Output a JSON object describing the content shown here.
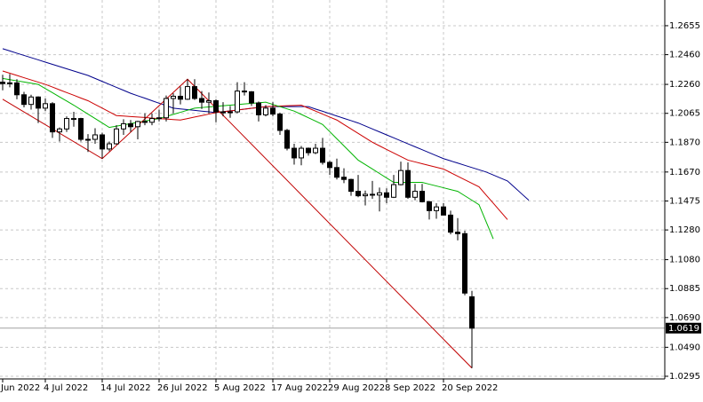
{
  "chart_data": {
    "type": "candlestick",
    "categories": [
      "Jun 2022",
      null,
      null,
      null,
      null,
      null,
      "4 Jul 2022",
      null,
      null,
      null,
      null,
      null,
      null,
      null,
      "14 Jul 2022",
      null,
      null,
      null,
      null,
      null,
      null,
      null,
      "26 Jul 2022",
      null,
      null,
      null,
      null,
      null,
      null,
      null,
      "5 Aug 2022",
      null,
      null,
      null,
      null,
      null,
      null,
      null,
      "17 Aug 2022",
      null,
      null,
      null,
      null,
      null,
      null,
      null,
      "29 Aug 2022",
      null,
      null,
      null,
      null,
      null,
      null,
      null,
      "8 Sep 2022",
      null,
      null,
      null,
      null,
      null,
      null,
      null,
      "20 Sep 2022",
      null,
      null,
      null,
      null,
      null,
      null,
      null,
      null,
      null,
      null,
      null,
      null
    ],
    "open": [
      1.2275,
      1.2265,
      1.227,
      1.219,
      1.2125,
      1.2175,
      1.21,
      1.213,
      1.194,
      1.196,
      1.203,
      1.203,
      1.189,
      1.189,
      1.192,
      1.1825,
      1.186,
      1.196,
      1.1995,
      1.1975,
      1.201,
      1.2005,
      1.203,
      1.2035,
      1.2165,
      1.218,
      1.216,
      1.2245,
      1.2165,
      1.214,
      1.215,
      1.2075,
      1.2075,
      1.2075,
      1.2215,
      1.221,
      1.2135,
      1.2055,
      1.21,
      1.206,
      1.195,
      1.183,
      1.1765,
      1.183,
      1.18,
      1.183,
      1.1735,
      1.17,
      1.1635,
      1.162,
      1.154,
      1.151,
      1.152,
      1.1515,
      1.153,
      1.15,
      1.1585,
      1.168,
      1.15,
      1.154,
      1.147,
      1.141,
      1.1435,
      1.138,
      1.1265,
      1.1255,
      1.083,
      null,
      null,
      null,
      null,
      null,
      null,
      null,
      null
    ],
    "high": [
      1.2325,
      1.233,
      1.2295,
      1.221,
      1.219,
      1.218,
      1.2165,
      1.214,
      1.197,
      1.2045,
      1.2075,
      1.2035,
      1.1925,
      1.1965,
      1.1935,
      1.1875,
      1.1985,
      1.2025,
      1.202,
      1.2015,
      1.2065,
      1.2065,
      1.209,
      1.2185,
      1.22,
      1.2245,
      1.2295,
      1.2295,
      1.2215,
      1.2205,
      1.216,
      1.214,
      1.2115,
      1.2275,
      1.2275,
      1.2215,
      1.2145,
      1.212,
      1.214,
      1.207,
      1.196,
      1.186,
      1.1845,
      1.1835,
      1.186,
      1.19,
      1.1745,
      1.176,
      1.1695,
      1.1625,
      1.165,
      1.1545,
      1.161,
      1.1565,
      1.156,
      1.165,
      1.174,
      1.1735,
      1.159,
      1.159,
      1.1475,
      1.146,
      1.146,
      1.141,
      1.136,
      1.1275,
      1.087,
      null,
      null,
      null,
      null,
      null,
      null,
      null,
      null
    ],
    "low": [
      1.222,
      1.224,
      1.216,
      1.2105,
      1.209,
      1.2,
      1.208,
      1.19,
      1.1875,
      1.194,
      1.1975,
      1.1875,
      1.1805,
      1.186,
      1.176,
      1.181,
      1.1855,
      1.192,
      1.194,
      1.189,
      1.1985,
      1.1985,
      1.201,
      1.201,
      1.2065,
      1.2125,
      1.2155,
      1.2155,
      1.2095,
      1.2065,
      1.2005,
      1.2045,
      1.2035,
      1.2065,
      1.2185,
      1.2115,
      1.201,
      1.2045,
      1.2045,
      1.192,
      1.1815,
      1.172,
      1.1715,
      1.178,
      1.179,
      1.172,
      1.165,
      1.162,
      1.1595,
      1.151,
      1.15,
      1.1445,
      1.149,
      1.1405,
      1.146,
      1.1495,
      1.158,
      1.149,
      1.148,
      1.1465,
      1.135,
      1.1355,
      1.138,
      1.125,
      1.121,
      1.084,
      1.035,
      null,
      null,
      null,
      null,
      null,
      null,
      null,
      null
    ],
    "close": [
      1.2265,
      1.227,
      1.219,
      1.2125,
      1.2175,
      1.21,
      1.213,
      1.194,
      1.196,
      1.203,
      1.203,
      1.189,
      1.189,
      1.192,
      1.1825,
      1.186,
      1.196,
      1.1995,
      1.1975,
      1.201,
      1.2005,
      1.203,
      1.2035,
      1.2165,
      1.218,
      1.216,
      1.2245,
      1.2165,
      1.214,
      1.215,
      1.2075,
      1.2075,
      1.2075,
      1.2215,
      1.221,
      1.2135,
      1.2055,
      1.21,
      1.206,
      1.195,
      1.183,
      1.1765,
      1.183,
      1.18,
      1.183,
      1.1735,
      1.17,
      1.1635,
      1.162,
      1.154,
      1.151,
      1.152,
      1.1515,
      1.153,
      1.15,
      1.1585,
      1.168,
      1.15,
      1.154,
      1.147,
      1.141,
      1.1435,
      1.138,
      1.1265,
      1.1255,
      1.0855,
      1.0619,
      null,
      null,
      null,
      null,
      null,
      null,
      null,
      null
    ],
    "series": [
      {
        "color": "#00008b",
        "values": [
          1.25,
          1.2485,
          1.247,
          1.2455,
          1.244,
          1.2425,
          1.241,
          1.2395,
          1.238,
          1.2365,
          1.235,
          1.2335,
          1.232,
          1.23,
          1.228,
          1.226,
          1.224,
          1.222,
          1.22,
          1.2183,
          1.2167,
          1.215,
          1.2133,
          1.2117,
          1.21,
          1.2095,
          1.209,
          1.2085,
          1.208,
          1.2075,
          1.207,
          1.2076,
          1.2081,
          1.2087,
          1.2093,
          1.2099,
          1.2104,
          1.211,
          1.211,
          1.211,
          1.211,
          1.211,
          1.211,
          1.211,
          1.2094,
          1.2079,
          1.2063,
          1.2047,
          1.2031,
          1.2016,
          1.2,
          1.198,
          1.196,
          1.194,
          1.192,
          1.19,
          1.188,
          1.186,
          1.184,
          1.182,
          1.18,
          1.178,
          1.176,
          1.1745,
          1.173,
          1.1715,
          1.17,
          1.1685,
          1.167,
          1.165,
          1.163,
          1.161,
          1.1567,
          1.1523,
          1.148
        ]
      },
      {
        "color": "#cc0000",
        "values": [
          1.235,
          1.2335,
          1.232,
          1.2305,
          1.229,
          1.2275,
          1.226,
          1.2242,
          1.2223,
          1.2205,
          1.2187,
          1.2168,
          1.215,
          1.2125,
          1.21,
          1.2075,
          1.205,
          1.2047,
          1.2043,
          1.204,
          1.2037,
          1.2033,
          1.203,
          1.2027,
          1.2023,
          1.202,
          1.203,
          1.204,
          1.205,
          1.206,
          1.207,
          1.2076,
          1.2081,
          1.2087,
          1.2093,
          1.2099,
          1.2104,
          1.211,
          1.2112,
          1.2114,
          1.2116,
          1.2118,
          1.212,
          1.21,
          1.208,
          1.206,
          1.204,
          1.202,
          1.199,
          1.196,
          1.193,
          1.19,
          1.187,
          1.1846,
          1.1822,
          1.1798,
          1.1774,
          1.175,
          1.1738,
          1.1726,
          1.1714,
          1.1702,
          1.169,
          1.1666,
          1.1642,
          1.1618,
          1.1594,
          1.157,
          1.1515,
          1.146,
          1.1405,
          1.135,
          null,
          null,
          null
        ]
      },
      {
        "color": "#00b400",
        "values": [
          1.23,
          1.2292,
          1.2284,
          1.2276,
          1.2268,
          1.226,
          1.2232,
          1.2204,
          1.2176,
          1.2148,
          1.212,
          1.209,
          1.206,
          1.203,
          1.2,
          1.197,
          1.1979,
          1.1987,
          1.1996,
          1.2004,
          1.2013,
          1.2021,
          1.203,
          1.2044,
          1.2058,
          1.2072,
          1.2086,
          1.21,
          1.2104,
          1.2108,
          1.2112,
          1.2116,
          1.212,
          1.2124,
          1.2128,
          1.2132,
          1.2136,
          1.214,
          1.2125,
          1.211,
          1.2095,
          1.208,
          1.2058,
          1.2035,
          1.2013,
          1.199,
          1.1942,
          1.1894,
          1.1846,
          1.1798,
          1.175,
          1.172,
          1.169,
          1.166,
          1.163,
          1.16,
          1.16,
          1.16,
          1.16,
          1.16,
          1.1588,
          1.1576,
          1.1564,
          1.1552,
          1.154,
          1.151,
          1.148,
          1.145,
          1.1335,
          1.122,
          null,
          null,
          null,
          null,
          null
        ]
      }
    ],
    "zigzag": {
      "color": "#c00000",
      "x": [
        0,
        14,
        26,
        66
      ],
      "values": [
        1.216,
        1.176,
        1.2295,
        1.035
      ]
    },
    "last_price": 1.0619,
    "ylim": [
      1.0277,
      1.2828
    ],
    "yticks": [
      1.2655,
      {
        "value": 1.246,
        "label": "1.2460"
      },
      {
        "value": 1.226,
        "label": "1.2260"
      },
      1.2065,
      {
        "value": 1.187,
        "label": "1.1870"
      },
      {
        "value": 1.167,
        "label": "1.1670"
      },
      1.1475,
      {
        "value": 1.128,
        "label": "1.1280"
      },
      {
        "value": 1.108,
        "label": "1.1080"
      },
      1.0885,
      {
        "value": 1.069,
        "label": "1.0690"
      },
      {
        "value": 1.049,
        "label": "1.0490"
      },
      1.0295
    ],
    "grid": true
  }
}
